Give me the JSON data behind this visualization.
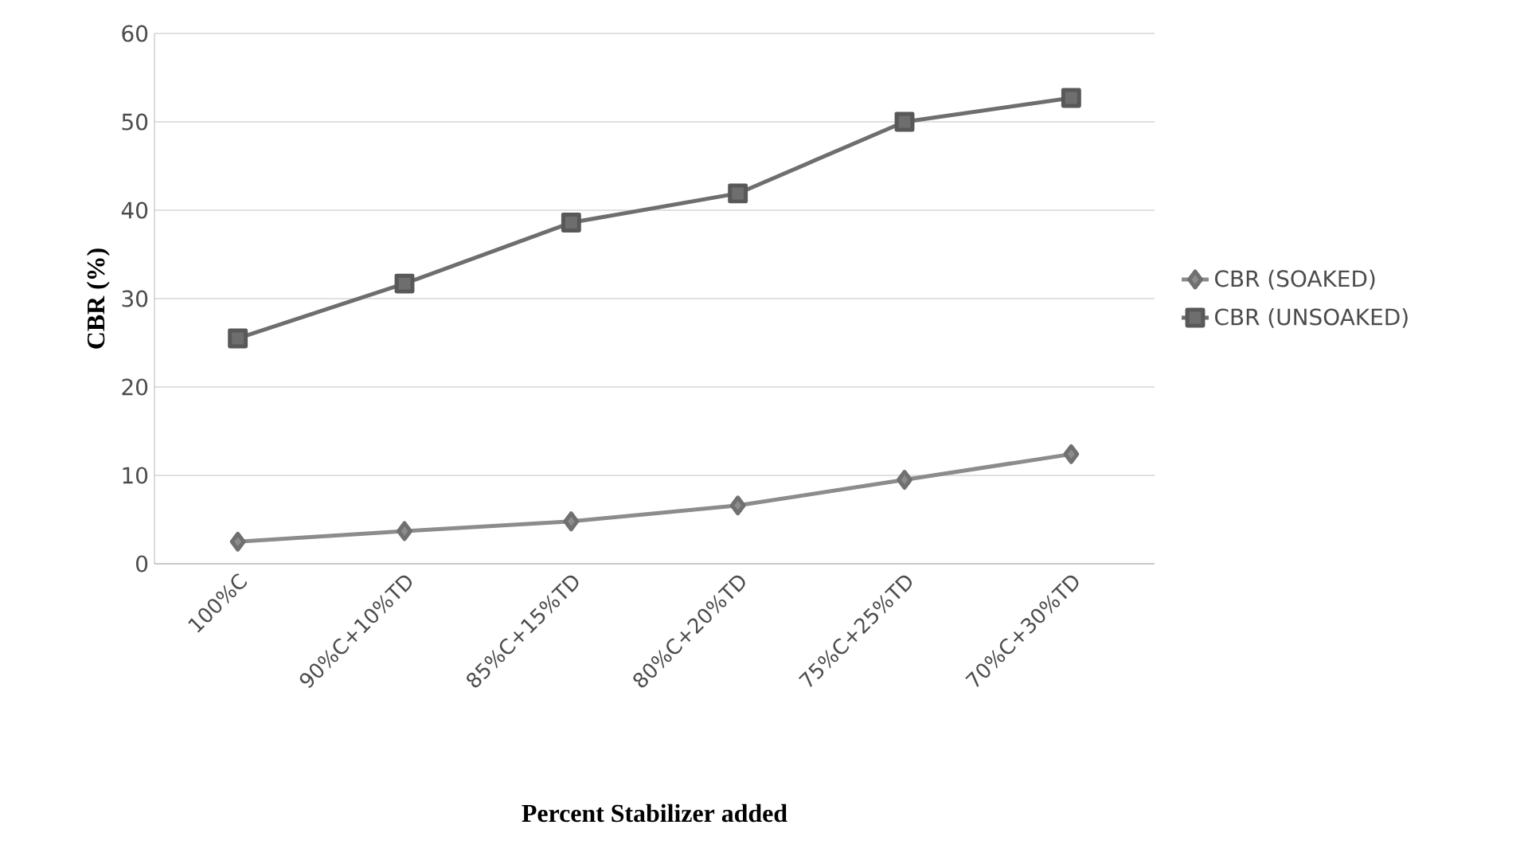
{
  "chart_data": {
    "type": "line",
    "xlabel": "Percent Stabilizer added",
    "ylabel": "CBR (%)",
    "categories": [
      "100%C",
      "90%C+10%TD",
      "85%C+15%TD",
      "80%C+20%TD",
      "75%C+25%TD",
      "70%C+30%TD"
    ],
    "series": [
      {
        "name": "CBR (SOAKED)",
        "color": "#8c8c8c",
        "marker": "diamond",
        "values": [
          2.5,
          3.7,
          4.8,
          6.6,
          9.5,
          12.4
        ]
      },
      {
        "name": "CBR (UNSOAKED)",
        "color": "#6e6e6e",
        "marker": "square",
        "values": [
          25.5,
          31.7,
          38.6,
          41.9,
          50.0,
          52.7
        ]
      }
    ],
    "ylim": [
      0,
      60
    ],
    "yticks": [
      0,
      10,
      20,
      30,
      40,
      50,
      60
    ],
    "grid": "y",
    "legend": "right"
  }
}
